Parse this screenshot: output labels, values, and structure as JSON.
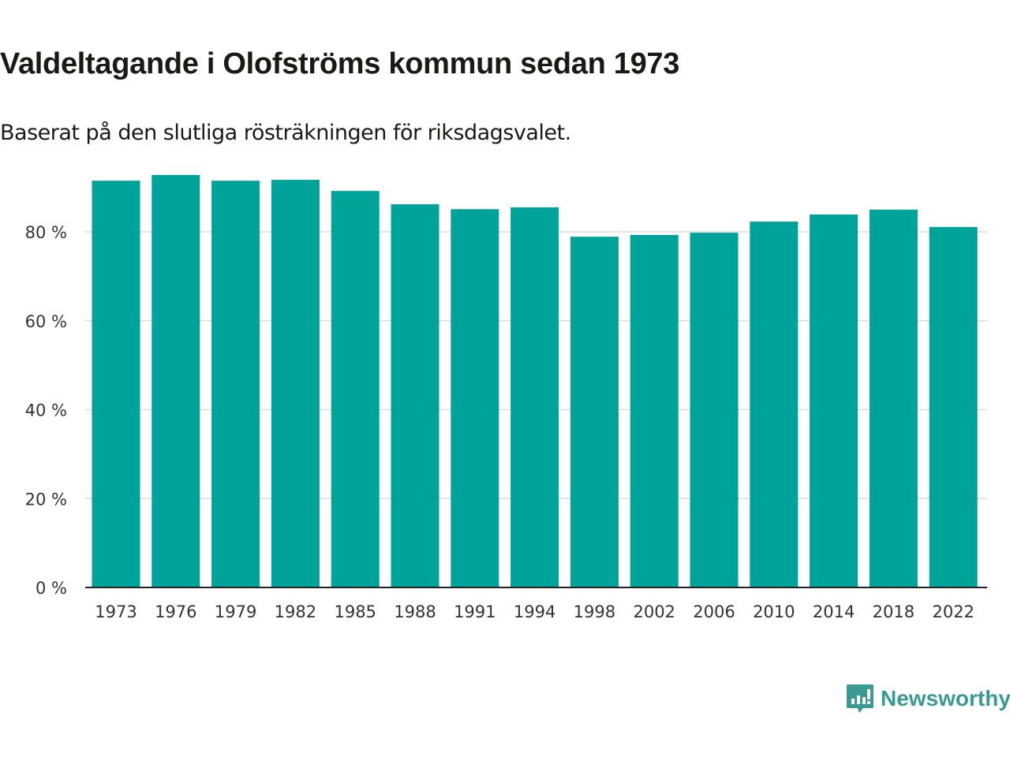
{
  "title": "Valdeltagande i Olofströms kommun sedan 1973",
  "subtitle": "Baserat på den slutliga rösträkningen för riksdagsvalet.",
  "logo": {
    "text": "Newsworthy",
    "icon": "bar-chart-speech-bubble-icon",
    "color": "#3a9a92"
  },
  "chart_data": {
    "type": "bar",
    "title": "Valdeltagande i Olofströms kommun sedan 1973",
    "xlabel": "",
    "ylabel": "",
    "categories": [
      "1973",
      "1976",
      "1979",
      "1982",
      "1985",
      "1988",
      "1991",
      "1994",
      "1998",
      "2002",
      "2006",
      "2010",
      "2014",
      "2018",
      "2022"
    ],
    "values": [
      91.5,
      92.8,
      91.5,
      91.7,
      89.2,
      86.2,
      85.1,
      85.5,
      78.9,
      79.3,
      79.8,
      82.3,
      83.9,
      85.0,
      81.1
    ],
    "ylim": [
      0,
      100
    ],
    "yticks": [
      0,
      20,
      40,
      60,
      80
    ],
    "ytick_labels": [
      "0 %",
      "20 %",
      "40 %",
      "60 %",
      "80 %"
    ],
    "grid": true,
    "bar_color": "#00a39a"
  }
}
